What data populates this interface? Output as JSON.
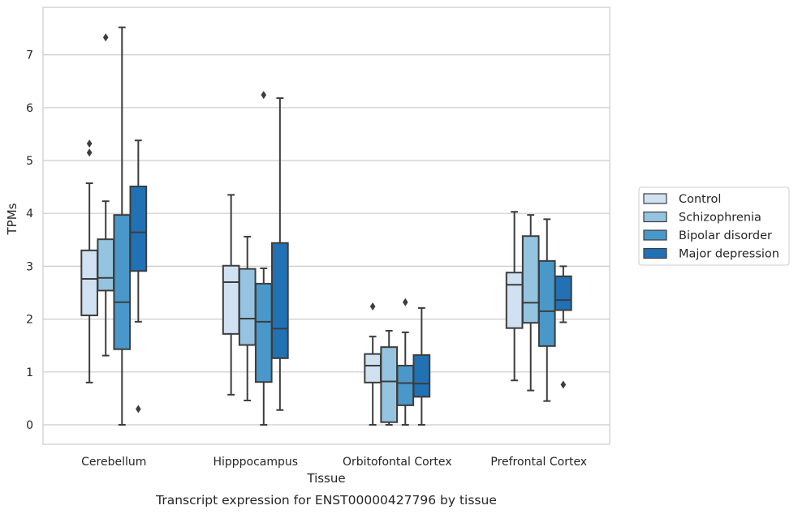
{
  "chart_data": {
    "type": "box",
    "title": "",
    "caption": "Transcript expression for ENST00000427796 by tissue",
    "xlabel": "Tissue",
    "ylabel": "TPMs",
    "ylim": [
      -0.35,
      7.9
    ],
    "yticks": [
      0,
      1,
      2,
      3,
      4,
      5,
      6,
      7
    ],
    "grid": "horizontal",
    "legend_position": "right",
    "categories": [
      "Cerebellum",
      "Hipppocampus",
      "Orbitofontal Cortex",
      "Prefrontal Cortex"
    ],
    "series": [
      {
        "name": "Control",
        "color": "#d0e1f2",
        "boxes": [
          {
            "whislo": 0.8,
            "q1": 2.07,
            "med": 2.76,
            "q3": 3.3,
            "whishi": 4.57,
            "fliers": [
              5.15,
              5.32
            ]
          },
          {
            "whislo": 0.57,
            "q1": 1.72,
            "med": 2.7,
            "q3": 3.01,
            "whishi": 4.35,
            "fliers": []
          },
          {
            "whislo": 0.0,
            "q1": 0.8,
            "med": 1.12,
            "q3": 1.34,
            "whishi": 1.67,
            "fliers": [
              2.24
            ]
          },
          {
            "whislo": 0.84,
            "q1": 1.83,
            "med": 2.65,
            "q3": 2.88,
            "whishi": 4.03,
            "fliers": []
          }
        ]
      },
      {
        "name": "Schizophrenia",
        "color": "#94c4df",
        "boxes": [
          {
            "whislo": 1.31,
            "q1": 2.54,
            "med": 2.78,
            "q3": 3.51,
            "whishi": 4.23,
            "fliers": [
              7.33
            ]
          },
          {
            "whislo": 0.46,
            "q1": 1.51,
            "med": 2.01,
            "q3": 2.95,
            "whishi": 3.56,
            "fliers": []
          },
          {
            "whislo": 0.0,
            "q1": 0.05,
            "med": 0.82,
            "q3": 1.47,
            "whishi": 1.78,
            "fliers": []
          },
          {
            "whislo": 0.65,
            "q1": 1.93,
            "med": 2.31,
            "q3": 3.57,
            "whishi": 3.97,
            "fliers": []
          }
        ]
      },
      {
        "name": "Bipolar disorder",
        "color": "#4a98c9",
        "boxes": [
          {
            "whislo": 0.0,
            "q1": 1.43,
            "med": 2.32,
            "q3": 3.97,
            "whishi": 7.52,
            "fliers": []
          },
          {
            "whislo": 0.0,
            "q1": 0.81,
            "med": 1.95,
            "q3": 2.67,
            "whishi": 2.96,
            "fliers": [
              6.24
            ]
          },
          {
            "whislo": 0.0,
            "q1": 0.37,
            "med": 0.79,
            "q3": 1.12,
            "whishi": 1.75,
            "fliers": [
              2.32
            ]
          },
          {
            "whislo": 0.45,
            "q1": 1.49,
            "med": 2.15,
            "q3": 3.1,
            "whishi": 3.89,
            "fliers": []
          }
        ]
      },
      {
        "name": "Major depression",
        "color": "#2171b5",
        "boxes": [
          {
            "whislo": 1.95,
            "q1": 2.91,
            "med": 3.64,
            "q3": 4.51,
            "whishi": 5.38,
            "fliers": [
              0.3
            ]
          },
          {
            "whislo": 0.28,
            "q1": 1.26,
            "med": 1.82,
            "q3": 3.44,
            "whishi": 6.18,
            "fliers": []
          },
          {
            "whislo": 0.0,
            "q1": 0.53,
            "med": 0.78,
            "q3": 1.32,
            "whishi": 2.21,
            "fliers": []
          },
          {
            "whislo": 1.94,
            "q1": 2.17,
            "med": 2.36,
            "q3": 2.81,
            "whishi": 3.0,
            "fliers": [
              0.76
            ]
          }
        ]
      }
    ]
  }
}
